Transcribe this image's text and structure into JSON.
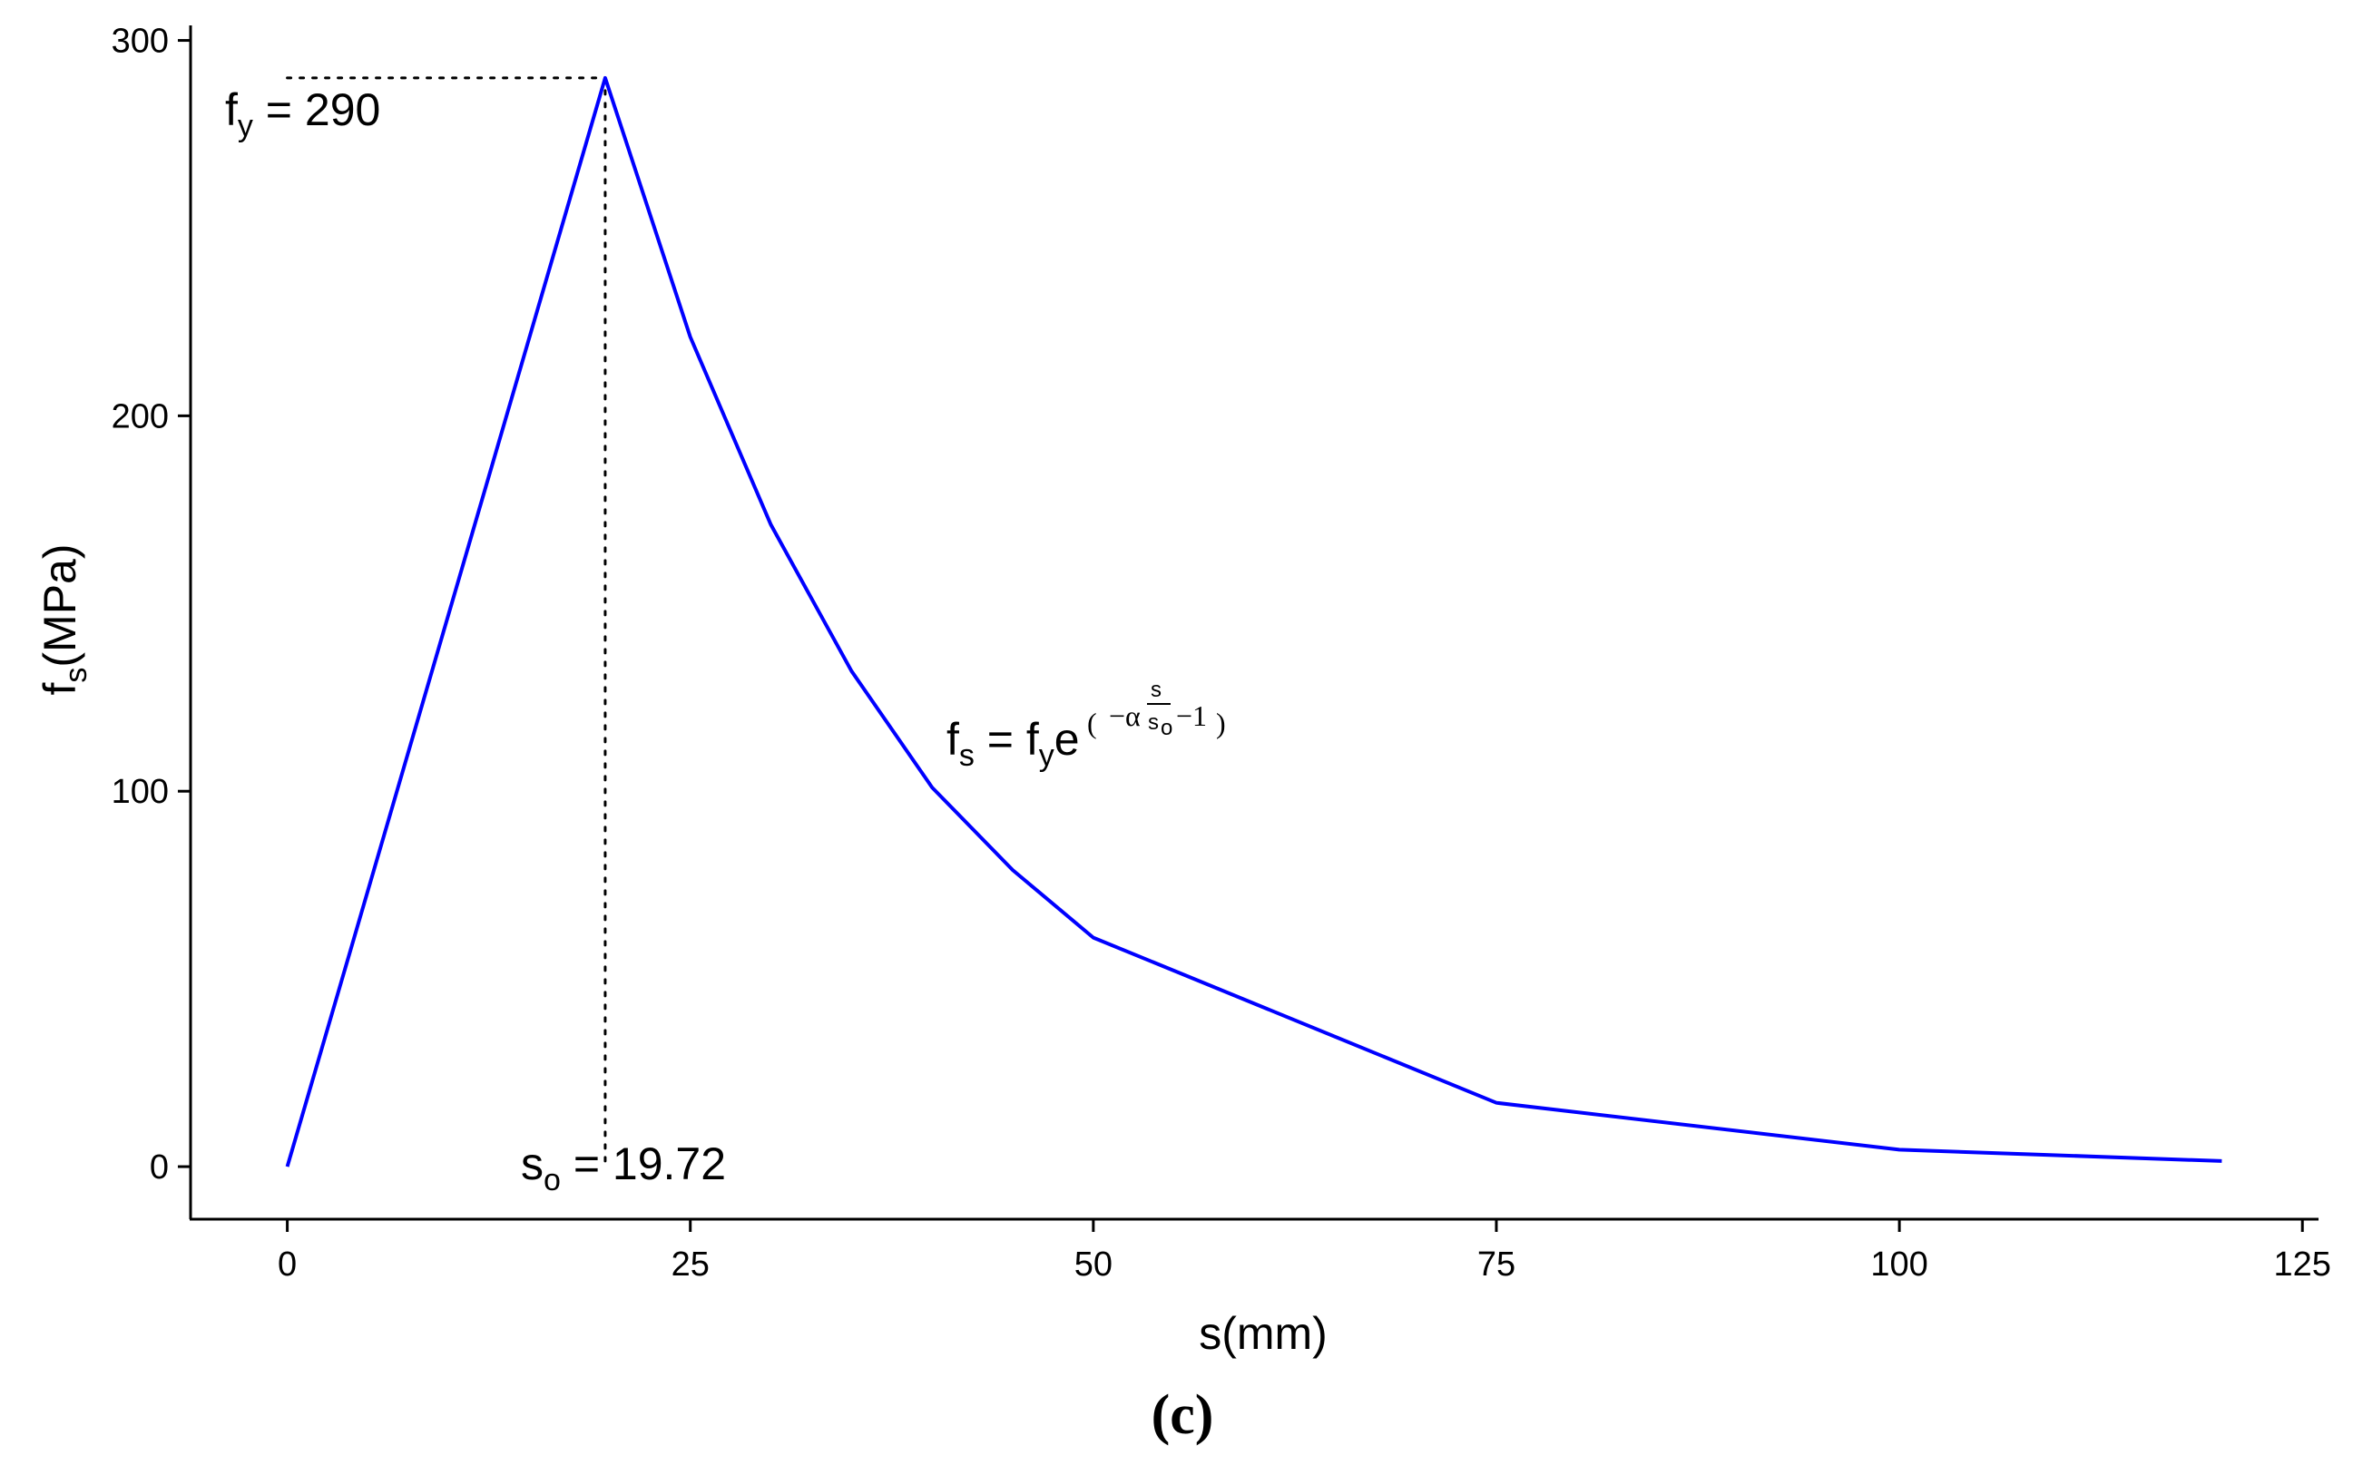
{
  "chart_data": {
    "type": "line",
    "x_label": "s(mm)",
    "y_label": "fs(MPa)",
    "xlim": [
      -6,
      126
    ],
    "ylim": [
      -14,
      304
    ],
    "x_ticks": [
      0,
      25,
      50,
      75,
      100,
      125
    ],
    "y_ticks": [
      0,
      100,
      200,
      300
    ],
    "grid": false,
    "legend": "none",
    "series": [
      {
        "color": "#0000ff",
        "x": [
          0,
          19.72,
          25,
          30,
          35,
          40,
          45,
          50,
          75,
          100,
          120
        ],
        "y": [
          0,
          290,
          221,
          171,
          132,
          101,
          79,
          61,
          17,
          4.5,
          1.5
        ]
      }
    ],
    "reference_lines": {
      "fy": 290,
      "so": 19.72
    },
    "annotations": {
      "fy_label": "fy = 290",
      "so_label": "so = 19.72",
      "equation": "fs = fy e^(−α s/so − 1)"
    }
  },
  "caption": "(c)"
}
